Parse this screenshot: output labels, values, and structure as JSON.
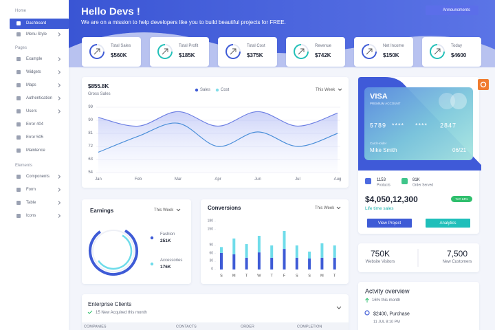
{
  "sidebar": {
    "sections": [
      {
        "title": "Home",
        "items": [
          "Dashboard",
          "Menu Style"
        ]
      },
      {
        "title": "Pages",
        "items": [
          "Example",
          "Widgets",
          "Maps",
          "Authentication",
          "Users",
          "Error 404",
          "Error 505",
          "Maintence"
        ]
      },
      {
        "title": "Elements",
        "items": [
          "Components",
          "Form",
          "Table",
          "Icons"
        ]
      }
    ]
  },
  "header": {
    "title": "Hello Devs !",
    "subtitle": "We are on a mission to help developers like you to build beautiful projects for FREE.",
    "button": "Announcments"
  },
  "stats": [
    {
      "label": "Total Sales",
      "value": "$560K"
    },
    {
      "label": "Total Profit",
      "value": "$185K"
    },
    {
      "label": "Total Cost",
      "value": "$375K"
    },
    {
      "label": "Revenue",
      "value": "$742K"
    },
    {
      "label": "Net Income",
      "value": "$150K"
    },
    {
      "label": "Today",
      "value": "$4600"
    }
  ],
  "sales_chart": {
    "type": "line",
    "value": "$855.8K",
    "label": "Gross Sales",
    "period": "This Week",
    "categories": [
      "Jan",
      "Feb",
      "Mar",
      "Apr",
      "Jun",
      "Jul",
      "Aug"
    ],
    "series": [
      {
        "name": "Sales",
        "color": "#6d7fe3",
        "values": [
          92,
          86,
          96,
          86,
          96,
          86,
          95
        ]
      },
      {
        "name": "Cost",
        "color": "#4b8fd9",
        "values": [
          68,
          79,
          88,
          72,
          82,
          72,
          81
        ]
      }
    ],
    "legend_colors": [
      "#3e5bd6",
      "#7fdde9"
    ],
    "ylim": [
      54,
      99
    ],
    "yticks": [
      99,
      90,
      81,
      72,
      63,
      54
    ],
    "grid": true
  },
  "earnings": {
    "type": "donut",
    "title": "Earnings",
    "period": "This Week",
    "categories": [
      "Fashion",
      "Accessories"
    ],
    "values": [
      251,
      176
    ],
    "value_labels": [
      "251K",
      "176K"
    ],
    "colors": [
      "#3e5bd6",
      "#6fdcea"
    ]
  },
  "conversions": {
    "type": "bar",
    "title": "Conversions",
    "period": "This Week",
    "categories": [
      "S",
      "M",
      "T",
      "W",
      "T",
      "F",
      "S",
      "S",
      "M",
      "T"
    ],
    "series": [
      {
        "color": "#3e5bd6",
        "values": [
          62,
          57,
          44,
          64,
          44,
          77,
          44,
          41,
          44,
          44
        ]
      },
      {
        "color": "#6fdcea",
        "values": [
          22,
          59,
          51,
          62,
          46,
          67,
          46,
          26,
          54,
          46
        ]
      }
    ],
    "ylim": [
      0,
      180
    ],
    "yticks": [
      180,
      150,
      90,
      60,
      30,
      0
    ]
  },
  "card": {
    "brand": "VISA",
    "tier": "PREMIUM ACCOUNT",
    "number": [
      "5789",
      "****",
      "****",
      "2847"
    ],
    "holder_label": "Card Holder",
    "holder": "Mike Smith",
    "expiry": "06/21",
    "products_value": "1153",
    "products_label": "Products",
    "orders_value": "81K",
    "orders_label": "Order Served",
    "total": "$4,050,12,300",
    "total_label": "Life time sales",
    "badge": "YoY 24%",
    "buttons": [
      "View Project",
      "Analytics"
    ]
  },
  "visitors": [
    {
      "value": "750K",
      "label": "Website Visitors"
    },
    {
      "value": "7,500",
      "label": "New Customers"
    }
  ],
  "activity": {
    "title": "Actvity overview",
    "change": "16% this month",
    "item": "$2400, Purchase",
    "time": "11 JUL 8:10 PM"
  },
  "clients": {
    "title": "Enterprise Clients",
    "subtitle": "15 New Acquired this month",
    "columns": [
      "COMPANIES",
      "CONTACTS",
      "ORDER",
      "COMPLETION"
    ]
  }
}
